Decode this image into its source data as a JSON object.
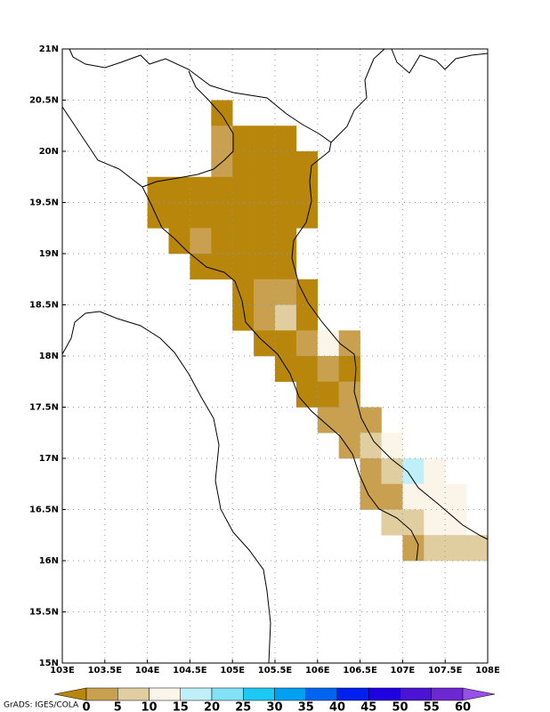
{
  "chart_data": {
    "type": "grid-map",
    "credit": "GrADS: IGES/COLA",
    "xlim": [
      103,
      108
    ],
    "ylim": [
      15,
      21
    ],
    "cell_size": 0.25,
    "xticks": [
      {
        "value": 103,
        "label": "103E"
      },
      {
        "value": 103.5,
        "label": "103.5E"
      },
      {
        "value": 104,
        "label": "104E"
      },
      {
        "value": 104.5,
        "label": "104.5E"
      },
      {
        "value": 105,
        "label": "105E"
      },
      {
        "value": 105.5,
        "label": "105.5E"
      },
      {
        "value": 106,
        "label": "106E"
      },
      {
        "value": 106.5,
        "label": "106.5E"
      },
      {
        "value": 107,
        "label": "107E"
      },
      {
        "value": 107.5,
        "label": "107.5E"
      },
      {
        "value": 108,
        "label": "108E"
      }
    ],
    "yticks": [
      {
        "value": 15,
        "label": "15N"
      },
      {
        "value": 15.5,
        "label": "15.5N"
      },
      {
        "value": 16,
        "label": "16N"
      },
      {
        "value": 16.5,
        "label": "16.5N"
      },
      {
        "value": 17,
        "label": "17N"
      },
      {
        "value": 17.5,
        "label": "17.5N"
      },
      {
        "value": 18,
        "label": "18N"
      },
      {
        "value": 18.5,
        "label": "18.5N"
      },
      {
        "value": 19,
        "label": "19N"
      },
      {
        "value": 19.5,
        "label": "19.5N"
      },
      {
        "value": 20,
        "label": "20N"
      },
      {
        "value": 20.5,
        "label": "20.5N"
      },
      {
        "value": 21,
        "label": "21N"
      }
    ],
    "grid": true,
    "levels": [
      0,
      5,
      10,
      15,
      20,
      25,
      30,
      35,
      40,
      45,
      50,
      55,
      60
    ],
    "colors": [
      "#b8860b",
      "#c8a050",
      "#e0cda0",
      "#faf5e8",
      "#bff0fa",
      "#82e1f7",
      "#1ec8f5",
      "#00a0f0",
      "#0064f0",
      "#0020f0",
      "#1e00e0",
      "#4b14d2",
      "#6e28d2",
      "#9650e6"
    ],
    "cells": [
      [
        104.75,
        20.25,
        -2
      ],
      [
        104.75,
        20,
        2.5
      ],
      [
        105,
        20,
        -2
      ],
      [
        105.25,
        20,
        -2
      ],
      [
        105.5,
        20,
        -2
      ],
      [
        104.75,
        19.75,
        2.5
      ],
      [
        105,
        19.75,
        -2
      ],
      [
        105.25,
        19.75,
        -2
      ],
      [
        105.5,
        19.75,
        -2
      ],
      [
        105.75,
        19.75,
        -2
      ],
      [
        104,
        19.5,
        -2
      ],
      [
        104.25,
        19.5,
        -2
      ],
      [
        104.5,
        19.5,
        -2
      ],
      [
        104.75,
        19.5,
        -2
      ],
      [
        105,
        19.5,
        -2
      ],
      [
        105.25,
        19.5,
        -2
      ],
      [
        105.5,
        19.5,
        -2
      ],
      [
        105.75,
        19.5,
        -2
      ],
      [
        104,
        19.25,
        -2
      ],
      [
        104.25,
        19.25,
        -2
      ],
      [
        104.5,
        19.25,
        -2
      ],
      [
        104.75,
        19.25,
        -2
      ],
      [
        105,
        19.25,
        -2
      ],
      [
        105.25,
        19.25,
        -2
      ],
      [
        105.5,
        19.25,
        -2
      ],
      [
        105.75,
        19.25,
        -2
      ],
      [
        104.25,
        19,
        -2
      ],
      [
        104.5,
        19,
        2.5
      ],
      [
        104.75,
        19,
        -2
      ],
      [
        105,
        19,
        -2
      ],
      [
        105.25,
        19,
        -2
      ],
      [
        105.5,
        19,
        -2
      ],
      [
        104.5,
        18.75,
        -2
      ],
      [
        104.75,
        18.75,
        -2
      ],
      [
        105,
        18.75,
        -2
      ],
      [
        105.25,
        18.75,
        -2
      ],
      [
        105.5,
        18.75,
        -2
      ],
      [
        105,
        18.5,
        -2
      ],
      [
        105.25,
        18.5,
        2.5
      ],
      [
        105.5,
        18.5,
        2.5
      ],
      [
        105.75,
        18.5,
        -2
      ],
      [
        105,
        18.25,
        -2
      ],
      [
        105.25,
        18.25,
        2.5
      ],
      [
        105.5,
        18.25,
        7.5
      ],
      [
        105.75,
        18.25,
        -2
      ],
      [
        105.25,
        18,
        -2
      ],
      [
        105.5,
        18,
        -2
      ],
      [
        105.75,
        18,
        2.5
      ],
      [
        106,
        18,
        12.5
      ],
      [
        106.25,
        18,
        2.5
      ],
      [
        105.5,
        17.75,
        -2
      ],
      [
        105.75,
        17.75,
        -2
      ],
      [
        106,
        17.75,
        2.5
      ],
      [
        106.25,
        17.75,
        -2
      ],
      [
        105.75,
        17.5,
        -2
      ],
      [
        106,
        17.5,
        -2
      ],
      [
        106.25,
        17.5,
        2.5
      ],
      [
        106,
        17.25,
        2.5
      ],
      [
        106.25,
        17.25,
        2.5
      ],
      [
        106.5,
        17.25,
        2.5
      ],
      [
        106.25,
        17,
        2.5
      ],
      [
        106.5,
        17,
        7.5
      ],
      [
        106.75,
        17,
        12.5
      ],
      [
        106.5,
        16.75,
        2.5
      ],
      [
        106.75,
        16.75,
        7.5
      ],
      [
        107,
        16.75,
        17.5
      ],
      [
        107.25,
        16.75,
        12.5
      ],
      [
        106.5,
        16.5,
        2.5
      ],
      [
        106.75,
        16.5,
        2.5
      ],
      [
        107,
        16.5,
        12.5
      ],
      [
        107.25,
        16.5,
        12.5
      ],
      [
        107.5,
        16.5,
        12.5
      ],
      [
        106.75,
        16.25,
        7.5
      ],
      [
        107,
        16.25,
        7.5
      ],
      [
        107.25,
        16.25,
        12.5
      ],
      [
        107.5,
        16.25,
        12.5
      ],
      [
        107,
        16,
        2.5
      ],
      [
        107.25,
        16,
        7.5
      ],
      [
        107.5,
        16,
        7.5
      ],
      [
        107.75,
        16,
        7.5
      ]
    ]
  }
}
